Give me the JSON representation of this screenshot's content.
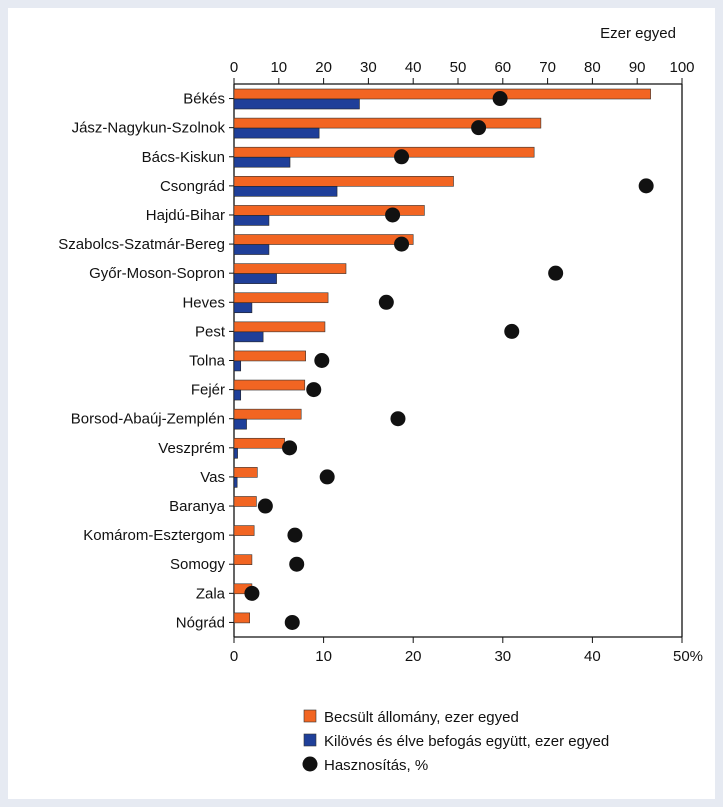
{
  "background_color": "#e6eaf2",
  "chart_data": {
    "type": "bar",
    "orientation": "horizontal",
    "top_axis": {
      "label": "Ezer egyed",
      "range": [
        0,
        100
      ],
      "ticks": [
        "0",
        "10",
        "20",
        "30",
        "40",
        "50",
        "60",
        "70",
        "80",
        "90",
        "100"
      ]
    },
    "bottom_axis": {
      "label": "%",
      "range": [
        0,
        50
      ],
      "ticks": [
        "0",
        "10",
        "20",
        "30",
        "40",
        "50"
      ]
    },
    "categories": [
      "Békés",
      "Jász-Nagykun-Szolnok",
      "Bács-Kiskun",
      "Csongrád",
      "Hajdú-Bihar",
      "Szabolcs-Szatmár-Bereg",
      "Győr-Moson-Sopron",
      "Heves",
      "Pest",
      "Tolna",
      "Fejér",
      "Borsod-Abaúj-Zemplén",
      "Veszprém",
      "Vas",
      "Baranya",
      "Komárom-Esztergom",
      "Somogy",
      "Zala",
      "Nógrád"
    ],
    "series": [
      {
        "name": "Becsült állomány, ezer egyed",
        "kind": "bar",
        "axis": "top",
        "color": "#f26522",
        "values": [
          93.0,
          68.5,
          67.0,
          49.0,
          42.5,
          40.0,
          25.0,
          21.0,
          20.3,
          16.0,
          15.8,
          15.0,
          11.3,
          5.2,
          5.0,
          4.5,
          4.0,
          4.0,
          3.5
        ]
      },
      {
        "name": "Kilövés és élve befogás együtt, ezer egyed",
        "kind": "bar",
        "axis": "top",
        "color": "#1f3f99",
        "values": [
          28.0,
          19.0,
          12.5,
          23.0,
          7.8,
          7.8,
          9.5,
          4.0,
          6.5,
          1.5,
          1.5,
          2.8,
          0.8,
          0.7,
          0,
          0,
          0,
          0,
          0
        ]
      },
      {
        "name": "Hasznosítás, %",
        "kind": "dot",
        "axis": "bottom",
        "color": "#111111",
        "values": [
          29.7,
          27.3,
          18.7,
          46.0,
          17.7,
          18.7,
          35.9,
          17.0,
          31.0,
          9.8,
          8.9,
          18.3,
          6.2,
          10.4,
          3.5,
          6.8,
          7.0,
          2.0,
          6.5
        ]
      }
    ]
  },
  "legend": [
    {
      "label": "Becsült állomány, ezer egyed",
      "marker": "square",
      "color": "#f26522"
    },
    {
      "label": "Kilövés és élve befogás együtt, ezer egyed",
      "marker": "square",
      "color": "#1f3f99"
    },
    {
      "label": "Hasznosítás, %",
      "marker": "circle",
      "color": "#111111"
    }
  ]
}
